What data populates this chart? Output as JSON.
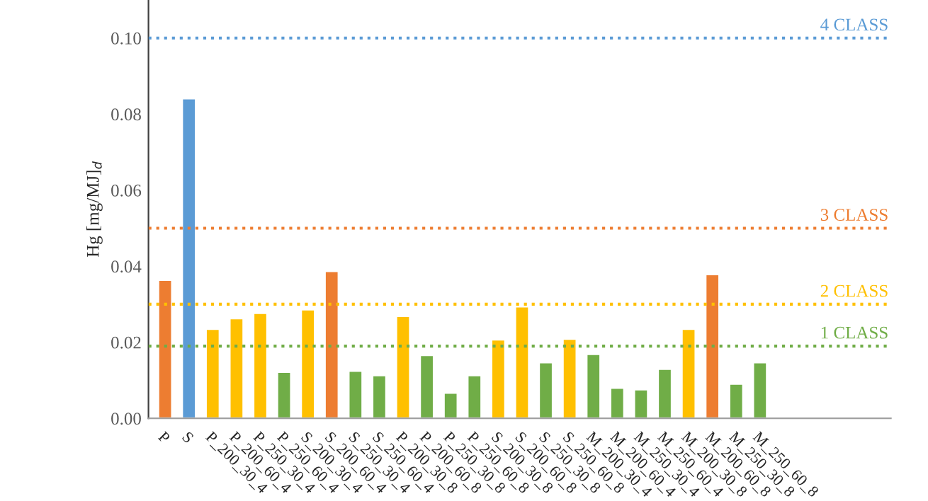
{
  "chart_data": {
    "type": "bar",
    "ylabel": "Hg [mg/MJ]$_{d}$",
    "categories": [
      "P",
      "S",
      "P_200_30_4",
      "P_200_60_4",
      "P_250_30_4",
      "P_250_60_4",
      "S_200_30_4",
      "S_200_60_4",
      "S_250_30_4",
      "S_250_60_4",
      "P_200_30_8",
      "P_200_60_8",
      "P_250_30_8",
      "P_250_60_8",
      "S_200_30_8",
      "S_200_60_8",
      "S_250_30_8",
      "S_250_60_8",
      "M_200_30_4",
      "M_200_60_4",
      "M_250_30_4",
      "M_250_60_4",
      "M_200_30_8",
      "M_200_60_8",
      "M_250_30_8",
      "M_250_60_8"
    ],
    "values": [
      0.0364,
      0.0841,
      0.0235,
      0.0263,
      0.0277,
      0.0122,
      0.0286,
      0.0387,
      0.0125,
      0.0113,
      0.0269,
      0.0166,
      0.0067,
      0.0113,
      0.0207,
      0.0294,
      0.0147,
      0.0209,
      0.0169,
      0.008,
      0.0076,
      0.013,
      0.0235,
      0.0379,
      0.0091,
      0.0147
    ],
    "colors": [
      "#ed7d31",
      "#5b9bd5",
      "#ffc000",
      "#ffc000",
      "#ffc000",
      "#70ad47",
      "#ffc000",
      "#ed7d31",
      "#70ad47",
      "#70ad47",
      "#ffc000",
      "#70ad47",
      "#70ad47",
      "#70ad47",
      "#ffc000",
      "#ffc000",
      "#70ad47",
      "#ffc000",
      "#70ad47",
      "#70ad47",
      "#70ad47",
      "#70ad47",
      "#ffc000",
      "#ed7d31",
      "#70ad47",
      "#70ad47"
    ],
    "ylim": [
      0,
      0.11
    ],
    "yticks": [
      {
        "value": 0,
        "label": "0.00"
      },
      {
        "value": 0.02,
        "label": "0.02"
      },
      {
        "value": 0.04,
        "label": "0.04"
      },
      {
        "value": 0.06,
        "label": "0.06"
      },
      {
        "value": 0.08,
        "label": "0.08"
      },
      {
        "value": 0.1,
        "label": "0.10"
      }
    ],
    "ref_lines": [
      {
        "axis": "y",
        "value": 0.1,
        "label": "4 CLASS",
        "color": "#5b9bd5",
        "line_style": "dotted"
      },
      {
        "axis": "y",
        "value": 0.05,
        "label": "3 CLASS",
        "color": "#ed7d31",
        "line_style": "dotted"
      },
      {
        "axis": "y",
        "value": 0.03,
        "label": "2 CLASS",
        "color": "#ffc000",
        "line_style": "dotted"
      },
      {
        "axis": "y",
        "value": 0.019,
        "label": "1 CLASS",
        "color": "#70ad47",
        "line_style": "dotted"
      }
    ],
    "grid": false,
    "legend": false
  }
}
